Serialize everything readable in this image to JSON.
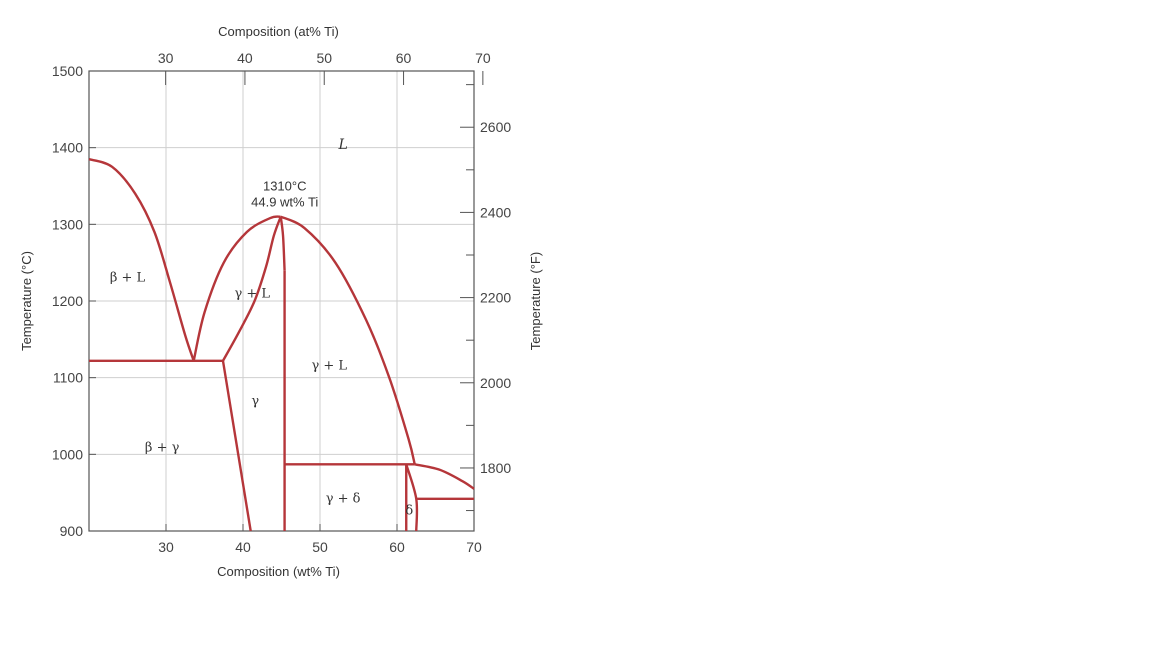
{
  "chart_data": {
    "type": "line",
    "x_bottom": {
      "label": "Composition (wt% Ti)",
      "lim": [
        20,
        70
      ],
      "ticks": [
        30,
        40,
        50,
        60,
        70
      ]
    },
    "x_top": {
      "label": "Composition (at% Ti)",
      "ticks": [
        30,
        40,
        50,
        60,
        70
      ],
      "tick_positions_wt": [
        30.6,
        40.9,
        51.2,
        61.5,
        71.8
      ]
    },
    "y_left": {
      "label": "Temperature (°C)",
      "lim": [
        900,
        1500
      ],
      "ticks": [
        900,
        1000,
        1100,
        1200,
        1300,
        1400,
        1500
      ]
    },
    "y_right": {
      "label": "Temperature (°F)",
      "ticks": [
        1800,
        2000,
        2200,
        2400,
        2600
      ]
    },
    "grid": true,
    "line_color": "#b5363a",
    "series": [
      {
        "x": [
          20,
          23,
          26,
          28.5,
          30.5,
          32.5,
          33.6
        ],
        "y": [
          1385,
          1375,
          1340,
          1290,
          1225,
          1155,
          1122
        ]
      },
      {
        "x": [
          33.6,
          35,
          37.5,
          40.5,
          43.5,
          44.9
        ],
        "y": [
          1122,
          1185,
          1250,
          1290,
          1308,
          1310
        ]
      },
      {
        "x": [
          37.4,
          39.5,
          41.5,
          43,
          44,
          44.9
        ],
        "y": [
          1122,
          1160,
          1200,
          1245,
          1285,
          1310
        ]
      },
      {
        "x": [
          44.9,
          48,
          52,
          56,
          59,
          61.5,
          62.3
        ],
        "y": [
          1310,
          1295,
          1250,
          1175,
          1100,
          1020,
          987
        ]
      },
      {
        "x": [
          44.9,
          45.2,
          45.4
        ],
        "y": [
          1310,
          1285,
          1240
        ]
      },
      {
        "x": [
          45.4,
          45.4
        ],
        "y": [
          1240,
          900
        ]
      },
      {
        "x": [
          20,
          37.4
        ],
        "y": [
          1122,
          1122
        ]
      },
      {
        "x": [
          37.4,
          41
        ],
        "y": [
          1122,
          900
        ]
      },
      {
        "x": [
          45.4,
          62.3
        ],
        "y": [
          987,
          987
        ]
      },
      {
        "x": [
          61.2,
          61.2
        ],
        "y": [
          987,
          900
        ]
      },
      {
        "x": [
          61.2,
          62.5,
          62.5
        ],
        "y": [
          987,
          942,
          900
        ]
      },
      {
        "x": [
          62.5,
          70
        ],
        "y": [
          942,
          942
        ]
      },
      {
        "x": [
          62.3,
          65.5,
          68.5,
          70
        ],
        "y": [
          987,
          980,
          965,
          955
        ]
      }
    ],
    "labels": [
      {
        "text": "L",
        "x": 53,
        "y": 1405,
        "style": "italic"
      },
      {
        "text": "β + L",
        "x": 25,
        "y": 1232,
        "style": "normal"
      },
      {
        "text": "γ + L",
        "x": 41.2,
        "y": 1211,
        "style": "normal"
      },
      {
        "text": "γ + L",
        "x": 51.2,
        "y": 1117,
        "style": "normal"
      },
      {
        "text": "γ",
        "x": 41.6,
        "y": 1071,
        "style": "normal"
      },
      {
        "text": "β + γ",
        "x": 29.5,
        "y": 1010,
        "style": "normal"
      },
      {
        "text": "γ + δ",
        "x": 53,
        "y": 944,
        "style": "normal"
      },
      {
        "text": "δ",
        "x": 61.6,
        "y": 928,
        "style": "normal"
      }
    ],
    "annotation": {
      "line1": "1310°C",
      "line2": "44.9 wt% Ti",
      "x": 44.9,
      "y": 1310
    }
  }
}
